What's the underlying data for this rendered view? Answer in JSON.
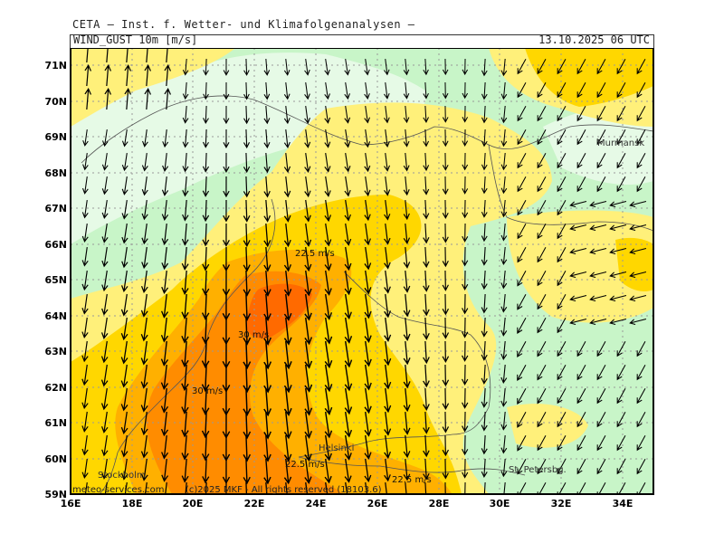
{
  "header": {
    "institute": "CETA — Inst. f. Wetter- und Klimafolgenanalysen —",
    "parameter": "WIND_GUST 10m [m/s]",
    "valid_time": "13.10.2025 06 UTC"
  },
  "axes": {
    "lat_labels": [
      "71N",
      "70N",
      "69N",
      "68N",
      "67N",
      "66N",
      "65N",
      "64N",
      "63N",
      "62N",
      "61N",
      "60N",
      "59N"
    ],
    "lon_labels": [
      "16E",
      "18E",
      "20E",
      "22E",
      "24E",
      "26E",
      "28E",
      "30E",
      "32E",
      "34E"
    ]
  },
  "contour_labels": [
    {
      "text": "22.5 m/s"
    },
    {
      "text": "30 m/s"
    },
    {
      "text": "30 m/s"
    },
    {
      "text": "22.5 m/s"
    },
    {
      "text": "22.5 m/s"
    }
  ],
  "places": [
    "Murmansk",
    "Helsinki",
    "Stockholm",
    "St. Petersbg."
  ],
  "footer": {
    "source": "meteo-services.com",
    "copyright": "(c)2025  MKF - All rights reserved (18103.6)"
  },
  "colors": {
    "lt_green": "#e6fae6",
    "green": "#c8f5c8",
    "yellow": "#fff07a",
    "lt_yellow": "#fff4a8",
    "gold": "#ffd700",
    "orange": "#ffb000",
    "dk_orange": "#ff8c00",
    "red_orange": "#ff6a00"
  }
}
